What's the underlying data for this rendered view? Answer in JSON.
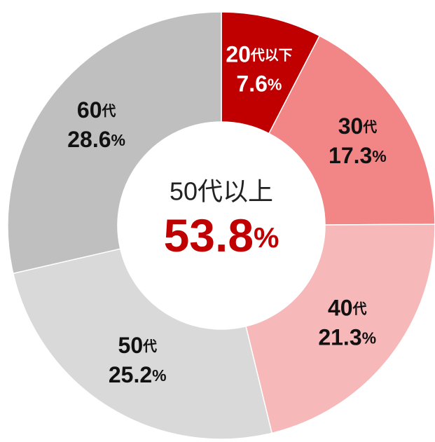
{
  "chart_data": {
    "type": "donut",
    "categories": [
      "20代以下",
      "30代",
      "40代",
      "50代",
      "60代"
    ],
    "values": [
      7.6,
      17.3,
      21.3,
      25.2,
      28.6
    ],
    "value_labels": [
      "7.6%",
      "17.3%",
      "21.3%",
      "25.2%",
      "28.6%"
    ],
    "colors": [
      "#c00000",
      "#f28585",
      "#f6b8b8",
      "#d9d9d9",
      "#bfbfbf"
    ],
    "annotations": [
      {
        "text": "50代以上"
      },
      {
        "text": "53.8%",
        "color": "#c00000"
      }
    ]
  }
}
